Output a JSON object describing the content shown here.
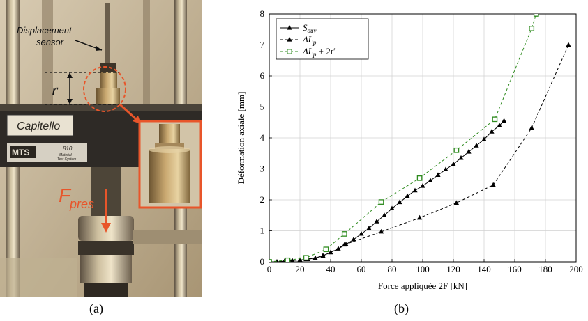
{
  "figure": {
    "panel_a": {
      "caption": "(a)",
      "labels": {
        "displacement_line1": "Displacement",
        "displacement_line2": "sensor",
        "r": "r",
        "capitello": "Capitello",
        "mts": "MTS",
        "model": "810",
        "material_line1": "Material",
        "material_line2": "Test System",
        "force_main": "F",
        "force_sub": "pres"
      },
      "colors": {
        "annotation": "#e8552a",
        "photo_tone": "#b09a78"
      }
    },
    "panel_b": {
      "caption": "(b)"
    }
  },
  "chart_data": {
    "type": "line",
    "xlabel": "Force appliquée 2F [kN]",
    "ylabel": "Déformation axiale [mm]",
    "xlim": [
      0,
      200
    ],
    "ylim": [
      0,
      8
    ],
    "xticks": [
      0,
      20,
      40,
      60,
      80,
      100,
      120,
      140,
      160,
      180,
      200
    ],
    "yticks": [
      0,
      1,
      2,
      3,
      4,
      5,
      6,
      7,
      8
    ],
    "grid": true,
    "legend": "top-left",
    "series": [
      {
        "name": "S_ouv",
        "legend_main": "S",
        "legend_sub": "ouv",
        "style": "solid",
        "marker": "triangle-filled",
        "color": "#000000",
        "x": [
          0,
          5,
          10,
          15,
          20,
          25,
          30,
          35,
          40,
          45,
          50,
          55,
          60,
          65,
          70,
          75,
          80,
          85,
          90,
          95,
          100,
          105,
          110,
          115,
          120,
          125,
          130,
          135,
          140,
          145,
          150,
          153
        ],
        "y": [
          0,
          0,
          0.02,
          0.04,
          0.06,
          0.08,
          0.12,
          0.2,
          0.3,
          0.42,
          0.56,
          0.72,
          0.9,
          1.08,
          1.3,
          1.5,
          1.72,
          1.92,
          2.12,
          2.3,
          2.45,
          2.62,
          2.8,
          2.98,
          3.15,
          3.35,
          3.55,
          3.75,
          3.95,
          4.2,
          4.4,
          4.55
        ]
      },
      {
        "name": "ΔL_p",
        "legend_main": "ΔL",
        "legend_sub": "p",
        "style": "dashed",
        "marker": "triangle-filled",
        "color": "#000000",
        "x": [
          0,
          10,
          24,
          35,
          49,
          73,
          98,
          122,
          146,
          171,
          195
        ],
        "y": [
          0,
          0.02,
          0.08,
          0.18,
          0.55,
          0.97,
          1.42,
          1.9,
          2.48,
          4.32,
          7.0
        ]
      },
      {
        "name": "ΔL_p + 2r′",
        "legend_main": "ΔL",
        "legend_sub": "p",
        "legend_tail": " + 2r′",
        "style": "dashed",
        "marker": "square-open",
        "color": "#2e8b1e",
        "x": [
          0,
          12,
          24,
          37,
          49,
          73,
          98,
          122,
          147,
          171,
          174
        ],
        "y": [
          0,
          0.05,
          0.13,
          0.4,
          0.9,
          1.93,
          2.7,
          3.6,
          4.6,
          7.53,
          8.0
        ]
      }
    ]
  }
}
